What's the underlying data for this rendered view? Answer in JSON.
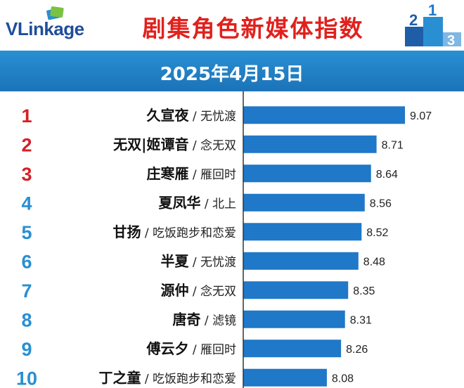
{
  "header": {
    "logo_text": "VLinkage",
    "title": "剧集角色新媒体指数",
    "podium_numbers": [
      "2",
      "1",
      "3"
    ]
  },
  "date": "2025年4月15日",
  "colors": {
    "bar": "#1f78c8",
    "rank_top": "#d42027",
    "rank_other": "#2a8fd2",
    "date_bar": "#1e7cc2",
    "title": "#e0211d"
  },
  "chart_data": {
    "type": "bar",
    "orientation": "horizontal",
    "title": "剧集角色新媒体指数",
    "subtitle": "2025年4月15日",
    "ranks": [
      "1",
      "2",
      "3",
      "4",
      "5",
      "6",
      "7",
      "8",
      "9",
      "10"
    ],
    "categories": [
      "久宣夜",
      "无双|姬谭音",
      "庄寒雁",
      "夏凤华",
      "甘扬",
      "半夏",
      "源仲",
      "唐奇",
      "傅云夕",
      "丁之童"
    ],
    "shows": [
      "无忧渡",
      "念无双",
      "雁回时",
      "北上",
      "吃饭跑步和恋爱",
      "无忧渡",
      "念无双",
      "滤镜",
      "雁回时",
      "吃饭跑步和恋爱"
    ],
    "values": [
      9.07,
      8.71,
      8.64,
      8.56,
      8.52,
      8.48,
      8.35,
      8.31,
      8.26,
      8.08
    ],
    "value_labels": [
      "9.07",
      "8.71",
      "8.64",
      "8.56",
      "8.52",
      "8.48",
      "8.35",
      "8.31",
      "8.26",
      "8.08"
    ],
    "xlim": [
      7.02,
      9.07
    ],
    "grid": false,
    "legend": "none"
  }
}
